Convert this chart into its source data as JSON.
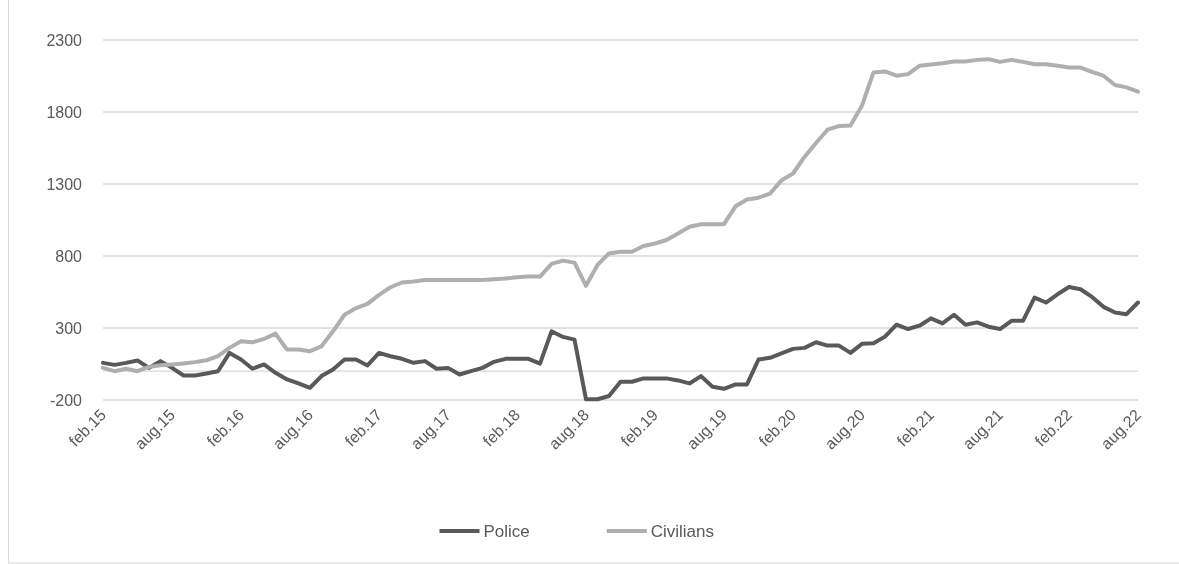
{
  "chart_data": {
    "type": "line",
    "categories": [
      "feb.15",
      null,
      null,
      null,
      null,
      null,
      "aug.15",
      null,
      null,
      null,
      null,
      null,
      "feb.16",
      null,
      null,
      null,
      null,
      null,
      "aug.16",
      null,
      null,
      null,
      null,
      null,
      "feb.17",
      null,
      null,
      null,
      null,
      null,
      "aug.17",
      null,
      null,
      null,
      null,
      null,
      "feb.18",
      null,
      null,
      null,
      null,
      null,
      "aug.18",
      null,
      null,
      null,
      null,
      null,
      "feb.19",
      null,
      null,
      null,
      null,
      null,
      "aug.19",
      null,
      null,
      null,
      null,
      null,
      "feb.20",
      null,
      null,
      null,
      null,
      null,
      "aug.20",
      null,
      null,
      null,
      null,
      null,
      "feb.21",
      null,
      null,
      null,
      null,
      null,
      "aug.21",
      null,
      null,
      null,
      null,
      null,
      "feb.22",
      null,
      null,
      null,
      null,
      null,
      "aug.22"
    ],
    "series": [
      {
        "name": "Police",
        "color": "#595959",
        "values": [
          58,
          44,
          58,
          74,
          23,
          70,
          23,
          -30,
          -30,
          -16,
          0,
          127,
          81,
          17,
          47,
          -11,
          -57,
          -85,
          -115,
          -34,
          12,
          81,
          81,
          40,
          127,
          104,
          86,
          58,
          70,
          17,
          23,
          -23,
          0,
          23,
          65,
          86,
          86,
          86,
          53,
          277,
          238,
          219,
          -195,
          -195,
          -172,
          -73,
          -73,
          -50,
          -50,
          -50,
          -64,
          -85,
          -34,
          -108,
          -122,
          -92,
          -92,
          81,
          93,
          123,
          155,
          162,
          201,
          178,
          178,
          127,
          190,
          194,
          240,
          323,
          293,
          316,
          367,
          332,
          392,
          323,
          339,
          309,
          293,
          350,
          350,
          511,
          477,
          534,
          585,
          569,
          516,
          447,
          408,
          396,
          477
        ]
      },
      {
        "name": "Civilians",
        "color": "#afafaf",
        "values": [
          23,
          0,
          17,
          0,
          30,
          42,
          47,
          53,
          63,
          76,
          104,
          162,
          208,
          201,
          224,
          261,
          150,
          150,
          139,
          173,
          277,
          392,
          438,
          468,
          530,
          583,
          616,
          623,
          634,
          634,
          634,
          634,
          634,
          634,
          639,
          643,
          652,
          657,
          657,
          745,
          768,
          754,
          593,
          738,
          818,
          830,
          830,
          869,
          887,
          911,
          957,
          1003,
          1021,
          1021,
          1021,
          1145,
          1192,
          1205,
          1233,
          1325,
          1373,
          1488,
          1585,
          1677,
          1702,
          1707,
          1845,
          2075,
          2082,
          2052,
          2063,
          2121,
          2130,
          2139,
          2151,
          2151,
          2162,
          2167,
          2148,
          2162,
          2148,
          2132,
          2132,
          2121,
          2109,
          2109,
          2079,
          2052,
          1987,
          1971,
          1941
        ]
      }
    ],
    "ylim": [
      -200,
      2300
    ],
    "yticks": [
      -200,
      300,
      800,
      1300,
      1800,
      2300
    ],
    "grid": "y",
    "legend": "bottom",
    "line_style": "solid",
    "marker": "none"
  }
}
